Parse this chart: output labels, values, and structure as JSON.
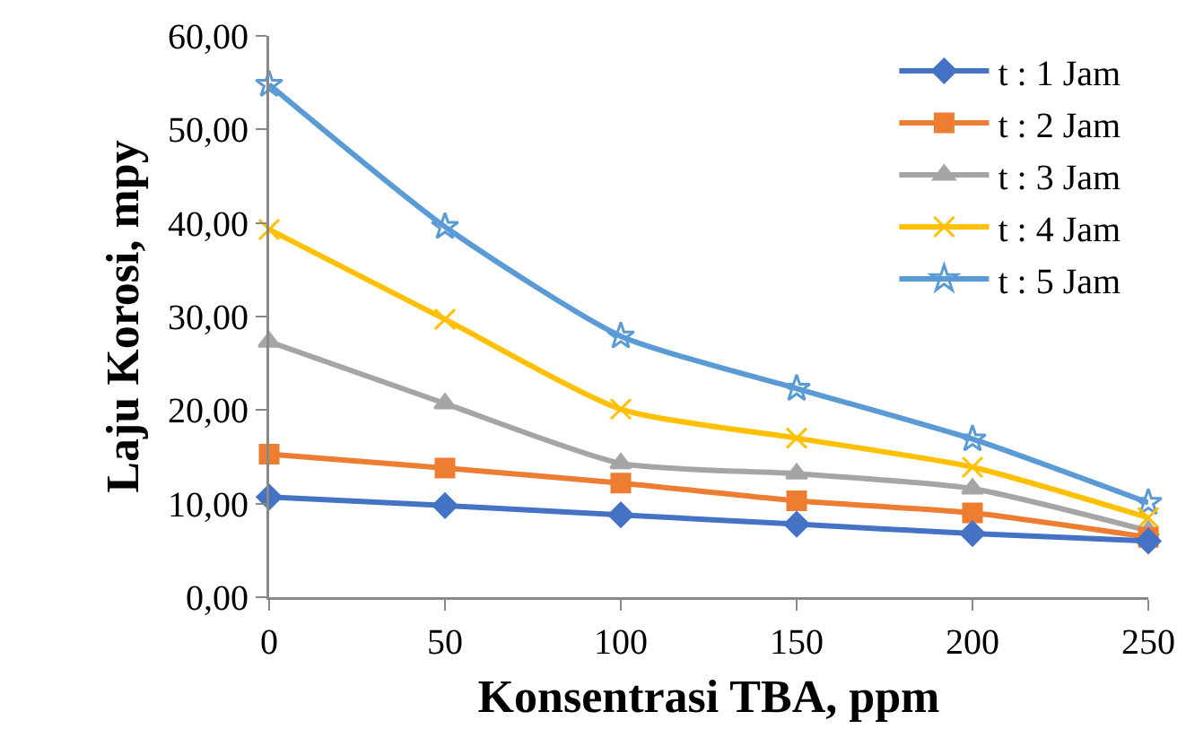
{
  "chart_data": {
    "type": "line",
    "xlabel": "Konsentrasi TBA, ppm",
    "ylabel": "Laju Korosi, mpy",
    "x": [
      0,
      50,
      100,
      150,
      200,
      250
    ],
    "series": [
      {
        "name": "t : 1 Jam",
        "color": "#4472c4",
        "marker": "diamond",
        "values": [
          10.7,
          9.8,
          8.8,
          7.8,
          6.8,
          6.0
        ]
      },
      {
        "name": "t : 2 Jam",
        "color": "#ed7d31",
        "marker": "square",
        "values": [
          15.3,
          13.8,
          12.2,
          10.3,
          9.0,
          6.4
        ]
      },
      {
        "name": "t : 3 Jam",
        "color": "#a5a5a5",
        "marker": "triangle",
        "values": [
          27.3,
          20.7,
          14.3,
          13.2,
          11.6,
          7.1
        ]
      },
      {
        "name": "t : 4 Jam",
        "color": "#ffc000",
        "marker": "cross",
        "values": [
          39.3,
          29.7,
          20.1,
          17.0,
          13.9,
          8.5
        ]
      },
      {
        "name": "t : 5 Jam",
        "color": "#5b9bd5",
        "marker": "star",
        "values": [
          54.8,
          39.6,
          27.9,
          22.3,
          16.9,
          10.1
        ]
      }
    ],
    "xlim": [
      0,
      250
    ],
    "xticks": [
      0,
      50,
      100,
      150,
      200,
      250
    ],
    "ylim": [
      0,
      60
    ],
    "yticks": [
      {
        "value": 0,
        "label": "0,00"
      },
      {
        "value": 10,
        "label": "10,00"
      },
      {
        "value": 20,
        "label": "20,00"
      },
      {
        "value": 30,
        "label": "30,00"
      },
      {
        "value": 40,
        "label": "40,00"
      },
      {
        "value": 50,
        "label": "50,00"
      },
      {
        "value": 60,
        "label": "60,00"
      }
    ],
    "grid": false,
    "legend": "top right",
    "line_style": "solid"
  }
}
